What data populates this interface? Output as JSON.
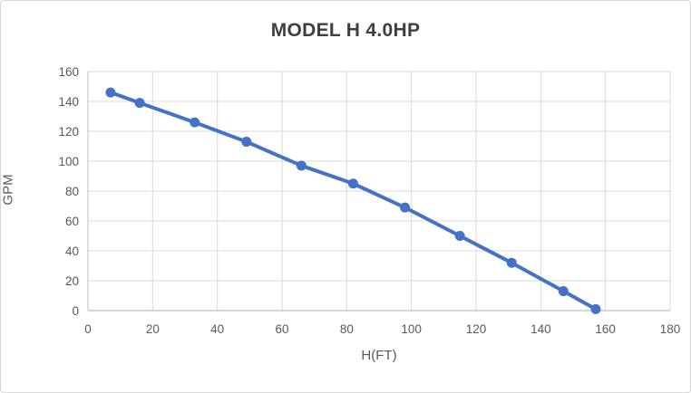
{
  "chart": {
    "title": "MODEL H 4.0HP",
    "x_axis_title": "H(FT)",
    "y_axis_title": "GPM"
  },
  "chart_data": {
    "type": "line",
    "title": "MODEL H 4.0HP",
    "xlabel": "H(FT)",
    "ylabel": "GPM",
    "x": [
      7,
      16,
      33,
      49,
      66,
      82,
      98,
      115,
      131,
      147,
      157
    ],
    "y": [
      146,
      139,
      126,
      113,
      97,
      85,
      69,
      50,
      32,
      13,
      1
    ],
    "xlim": [
      0,
      180
    ],
    "ylim": [
      0,
      160
    ],
    "x_ticks": [
      0,
      20,
      40,
      60,
      80,
      100,
      120,
      140,
      160,
      180
    ],
    "y_ticks": [
      0,
      20,
      40,
      60,
      80,
      100,
      120,
      140,
      160
    ],
    "grid": true,
    "legend": false,
    "marker": "circle"
  },
  "colors": {
    "series": "#4472C4",
    "gridline": "#d9d9d9",
    "axis_line": "#bfbfbf",
    "tick_text": "#595959",
    "title_text": "#3f3f3f"
  }
}
